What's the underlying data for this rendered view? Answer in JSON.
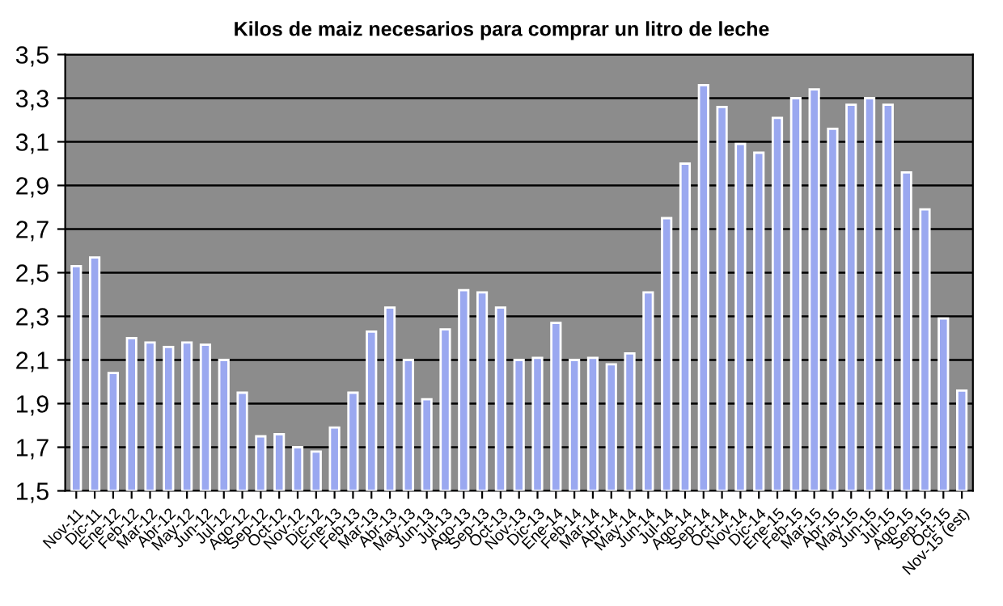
{
  "chart_data": {
    "type": "bar",
    "title": "Kilos de maiz necesarios para comprar un litro de leche",
    "categories": [
      "Nov-11",
      "Dic-11",
      "Ene-12",
      "Feb-12",
      "Mar-12",
      "Abr-12",
      "May-12",
      "Jun-12",
      "Jul-12",
      "Ago-12",
      "Sep-12",
      "Oct-12",
      "Nov-12",
      "Dic-12",
      "Ene-13",
      "Feb-13",
      "Mar-13",
      "Abr-13",
      "May-13",
      "Jun-13",
      "Jul-13",
      "Ago-13",
      "Sep-13",
      "Oct-13",
      "Nov-13",
      "Dic-13",
      "Ene-14",
      "Feb-14",
      "Mar-14",
      "Abr-14",
      "May-14",
      "Jun-14",
      "Jul-14",
      "Ago-14",
      "Sep-14",
      "Oct-14",
      "Nov-14",
      "Dic-14",
      "Ene-15",
      "Feb-15",
      "Mar-15",
      "Abr-15",
      "May-15",
      "Jun-15",
      "Jul-15",
      "Ago-15",
      "Sep-15",
      "Oct-15",
      "Nov-15 (est)"
    ],
    "values": [
      2.53,
      2.57,
      2.04,
      2.2,
      2.18,
      2.16,
      2.18,
      2.17,
      2.1,
      1.95,
      1.75,
      1.76,
      1.7,
      1.68,
      1.79,
      1.95,
      2.23,
      2.34,
      2.1,
      1.92,
      2.24,
      2.42,
      2.41,
      2.34,
      2.1,
      2.11,
      2.27,
      2.1,
      2.11,
      2.08,
      2.13,
      2.41,
      2.75,
      3.0,
      3.36,
      3.26,
      3.09,
      3.05,
      3.21,
      3.3,
      3.34,
      3.16,
      3.27,
      3.3,
      3.27,
      2.96,
      2.79,
      2.29,
      1.96
    ],
    "color": "#9aa8f0",
    "ylim": [
      1.5,
      3.5
    ],
    "yticks": [
      {
        "value": 1.5,
        "label": "1,5"
      },
      {
        "value": 1.7,
        "label": "1,7"
      },
      {
        "value": 1.9,
        "label": "1,9"
      },
      {
        "value": 2.1,
        "label": "2,1"
      },
      {
        "value": 2.3,
        "label": "2,3"
      },
      {
        "value": 2.5,
        "label": "2,5"
      },
      {
        "value": 2.7,
        "label": "2,7"
      },
      {
        "value": 2.9,
        "label": "2,9"
      },
      {
        "value": 3.1,
        "label": "3,1"
      },
      {
        "value": 3.3,
        "label": "3,3"
      },
      {
        "value": 3.5,
        "label": "3,5"
      }
    ],
    "grid": "y"
  }
}
